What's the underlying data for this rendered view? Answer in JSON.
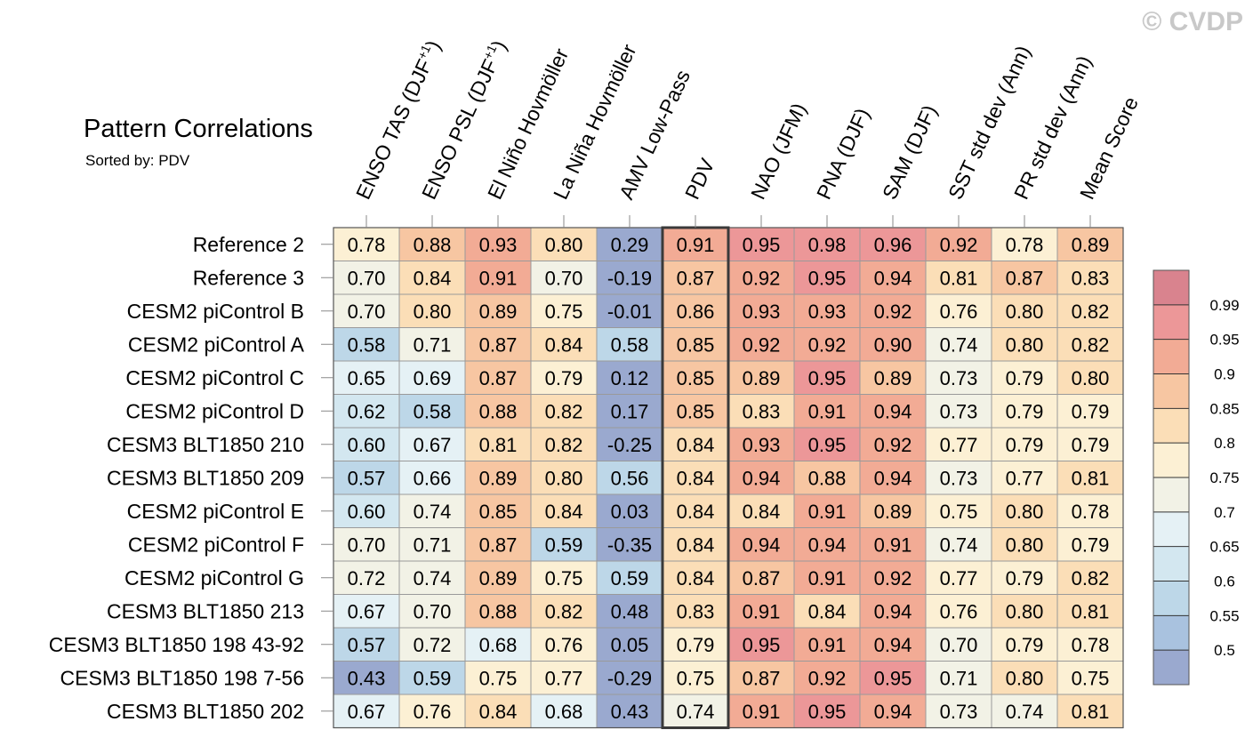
{
  "watermark": "© CVDP",
  "chart_data": {
    "type": "heatmap",
    "title": "Pattern Correlations",
    "subtitle": "Sorted by: PDV",
    "highlighted_column": "PDV",
    "columns": [
      {
        "pre": "ENSO TAS (DJF",
        "sup": "+1",
        "post": ")"
      },
      {
        "pre": "ENSO PSL (DJF",
        "sup": "+1",
        "post": ")"
      },
      {
        "pre": "El Niño Hovmöller",
        "sup": "",
        "post": ""
      },
      {
        "pre": "La Niña Hovmöller",
        "sup": "",
        "post": ""
      },
      {
        "pre": "AMV Low-Pass",
        "sup": "",
        "post": ""
      },
      {
        "pre": "PDV",
        "sup": "",
        "post": ""
      },
      {
        "pre": "NAO (JFM)",
        "sup": "",
        "post": ""
      },
      {
        "pre": "PNA (DJF)",
        "sup": "",
        "post": ""
      },
      {
        "pre": "SAM (DJF)",
        "sup": "",
        "post": ""
      },
      {
        "pre": "SST std dev (Ann)",
        "sup": "",
        "post": ""
      },
      {
        "pre": "PR std dev (Ann)",
        "sup": "",
        "post": ""
      },
      {
        "pre": "Mean Score",
        "sup": "",
        "post": ""
      }
    ],
    "rows": [
      "Reference 2",
      "Reference 3",
      "CESM2 piControl B",
      "CESM2 piControl A",
      "CESM2 piControl C",
      "CESM2 piControl D",
      "CESM3 BLT1850 210",
      "CESM3 BLT1850 209",
      "CESM2 piControl E",
      "CESM2 piControl F",
      "CESM2 piControl G",
      "CESM3 BLT1850 213",
      "CESM3 BLT1850 198 43-92",
      "CESM3 BLT1850 198 7-56",
      "CESM3 BLT1850 202"
    ],
    "values": [
      [
        "0.78",
        "0.88",
        "0.93",
        "0.80",
        "0.29",
        "0.91",
        "0.95",
        "0.98",
        "0.96",
        "0.92",
        "0.78",
        "0.89"
      ],
      [
        "0.70",
        "0.84",
        "0.91",
        "0.70",
        "-0.19",
        "0.87",
        "0.92",
        "0.95",
        "0.94",
        "0.81",
        "0.87",
        "0.83"
      ],
      [
        "0.70",
        "0.80",
        "0.89",
        "0.75",
        "-0.01",
        "0.86",
        "0.93",
        "0.93",
        "0.92",
        "0.76",
        "0.80",
        "0.82"
      ],
      [
        "0.58",
        "0.71",
        "0.87",
        "0.84",
        "0.58",
        "0.85",
        "0.92",
        "0.92",
        "0.90",
        "0.74",
        "0.80",
        "0.82"
      ],
      [
        "0.65",
        "0.69",
        "0.87",
        "0.79",
        "0.12",
        "0.85",
        "0.89",
        "0.95",
        "0.89",
        "0.73",
        "0.79",
        "0.80"
      ],
      [
        "0.62",
        "0.58",
        "0.88",
        "0.82",
        "0.17",
        "0.85",
        "0.83",
        "0.91",
        "0.94",
        "0.73",
        "0.79",
        "0.79"
      ],
      [
        "0.60",
        "0.67",
        "0.81",
        "0.82",
        "-0.25",
        "0.84",
        "0.93",
        "0.95",
        "0.92",
        "0.77",
        "0.79",
        "0.79"
      ],
      [
        "0.57",
        "0.66",
        "0.89",
        "0.80",
        "0.56",
        "0.84",
        "0.94",
        "0.88",
        "0.94",
        "0.73",
        "0.77",
        "0.81"
      ],
      [
        "0.60",
        "0.74",
        "0.85",
        "0.84",
        "0.03",
        "0.84",
        "0.84",
        "0.91",
        "0.89",
        "0.75",
        "0.80",
        "0.78"
      ],
      [
        "0.70",
        "0.71",
        "0.87",
        "0.59",
        "-0.35",
        "0.84",
        "0.94",
        "0.94",
        "0.91",
        "0.74",
        "0.80",
        "0.79"
      ],
      [
        "0.72",
        "0.74",
        "0.89",
        "0.75",
        "0.59",
        "0.84",
        "0.87",
        "0.91",
        "0.92",
        "0.77",
        "0.79",
        "0.82"
      ],
      [
        "0.67",
        "0.70",
        "0.88",
        "0.82",
        "0.48",
        "0.83",
        "0.91",
        "0.84",
        "0.94",
        "0.76",
        "0.80",
        "0.81"
      ],
      [
        "0.57",
        "0.72",
        "0.68",
        "0.76",
        "0.05",
        "0.79",
        "0.95",
        "0.91",
        "0.94",
        "0.70",
        "0.79",
        "0.78"
      ],
      [
        "0.43",
        "0.59",
        "0.75",
        "0.77",
        "-0.29",
        "0.75",
        "0.87",
        "0.92",
        "0.95",
        "0.71",
        "0.80",
        "0.75"
      ],
      [
        "0.67",
        "0.76",
        "0.84",
        "0.68",
        "0.43",
        "0.74",
        "0.91",
        "0.95",
        "0.94",
        "0.73",
        "0.74",
        "0.81"
      ]
    ],
    "colorbar": {
      "levels": [
        0.5,
        0.55,
        0.6,
        0.65,
        0.7,
        0.75,
        0.8,
        0.85,
        0.9,
        0.95,
        0.99
      ],
      "labels": [
        "0.5",
        "0.55",
        "0.6",
        "0.65",
        "0.7",
        "0.75",
        "0.8",
        "0.85",
        "0.9",
        "0.95",
        "0.99"
      ],
      "colors": [
        "#9aa9cf",
        "#a9c2df",
        "#bdd7e8",
        "#d3e7f0",
        "#e5f1f5",
        "#f2f2e6",
        "#fcf0d4",
        "#fbdeb7",
        "#f7c6a2",
        "#f2ab95",
        "#ec9798",
        "#d9838e"
      ]
    }
  }
}
